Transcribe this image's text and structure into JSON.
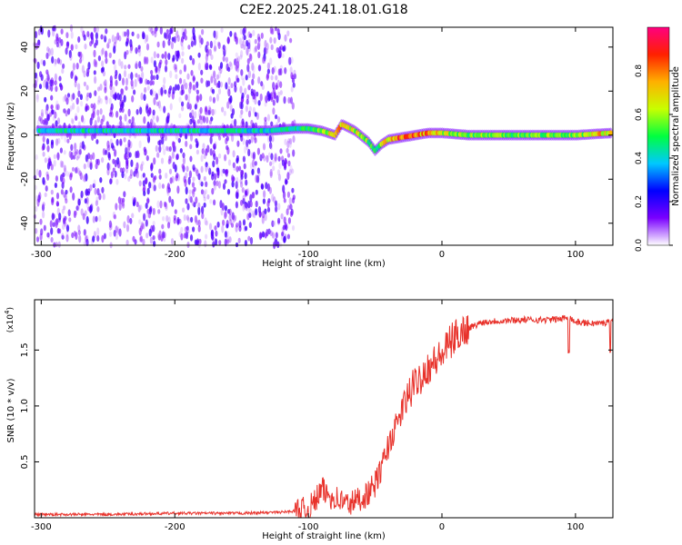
{
  "title": "C2E2.2025.241.18.01.G18",
  "colors": {
    "spectrogram_noise": "#8a2be2",
    "snr_line": "#e8322b",
    "axis": "#000000"
  },
  "chart_data": [
    {
      "type": "heatmap",
      "name": "spectrogram",
      "xlabel": "Height of straight line (km)",
      "ylabel": "Frequency (Hz)",
      "xlim": [
        -305,
        128
      ],
      "ylim": [
        -50,
        49
      ],
      "xticks": [
        -300,
        -200,
        -100,
        0,
        100
      ],
      "yticks": [
        -40,
        -20,
        0,
        20,
        40
      ],
      "grid": false,
      "colorbar": {
        "label": "Normalized spectral amplitude",
        "range": [
          0,
          1
        ],
        "ticks": [
          "0.0",
          "0.2",
          "0.4",
          "0.6",
          "0.8"
        ],
        "colormap": [
          "#ffffff",
          "#7a00ff",
          "#0000ff",
          "#00c8ff",
          "#00ff40",
          "#c8ff00",
          "#ffb000",
          "#ff2000",
          "#ff0080"
        ]
      },
      "ridge": {
        "description_points_height_km": [
          -305,
          -200,
          -130,
          -110,
          -100,
          -90,
          -80,
          -75,
          -65,
          -55,
          -50,
          -45,
          -40,
          -30,
          -20,
          -10,
          0,
          20,
          50,
          100,
          128
        ],
        "frequency_hz": [
          2,
          2,
          2,
          3,
          3,
          2,
          0,
          5,
          2,
          -3,
          -7,
          -4,
          -2,
          -1,
          0,
          1,
          1,
          0,
          0,
          0,
          1
        ],
        "peak_amplitude": [
          0.45,
          0.45,
          0.45,
          0.5,
          0.5,
          0.6,
          0.75,
          0.8,
          0.7,
          0.6,
          0.5,
          0.6,
          0.8,
          0.85,
          0.85,
          0.8,
          0.7,
          0.6,
          0.6,
          0.6,
          0.8
        ]
      },
      "noise_region_km": [
        -305,
        -110
      ]
    },
    {
      "type": "line",
      "name": "snr",
      "xlabel": "Height of straight line (km)",
      "ylabel": "SNR (10 * v/v)",
      "yscale_label": "(x10",
      "yscale_exp": "4",
      "xlim": [
        -305,
        128
      ],
      "ylim": [
        0,
        1.95
      ],
      "xticks": [
        -300,
        -200,
        -100,
        0,
        100
      ],
      "yticks": [
        0.5,
        1.0,
        1.5
      ],
      "grid": false,
      "series": [
        {
          "x": [
            -305,
            -250,
            -200,
            -150,
            -120,
            -100,
            -95,
            -90,
            -85,
            -80,
            -75,
            -70,
            -65,
            -60,
            -55,
            -50,
            -45,
            -40,
            -35,
            -30,
            -25,
            -20,
            -15,
            -10,
            -5,
            0,
            5,
            10,
            15,
            20,
            25,
            30,
            40,
            60,
            80,
            90,
            95,
            100,
            110,
            120,
            128
          ],
          "y": [
            0.03,
            0.03,
            0.04,
            0.04,
            0.05,
            0.07,
            0.15,
            0.25,
            0.2,
            0.18,
            0.15,
            0.12,
            0.15,
            0.18,
            0.22,
            0.3,
            0.45,
            0.65,
            0.8,
            0.95,
            1.1,
            1.2,
            1.28,
            1.35,
            1.4,
            1.45,
            1.55,
            1.62,
            1.67,
            1.7,
            1.72,
            1.75,
            1.76,
            1.77,
            1.77,
            1.78,
            1.8,
            1.75,
            1.74,
            1.74,
            1.76
          ]
        }
      ]
    }
  ]
}
